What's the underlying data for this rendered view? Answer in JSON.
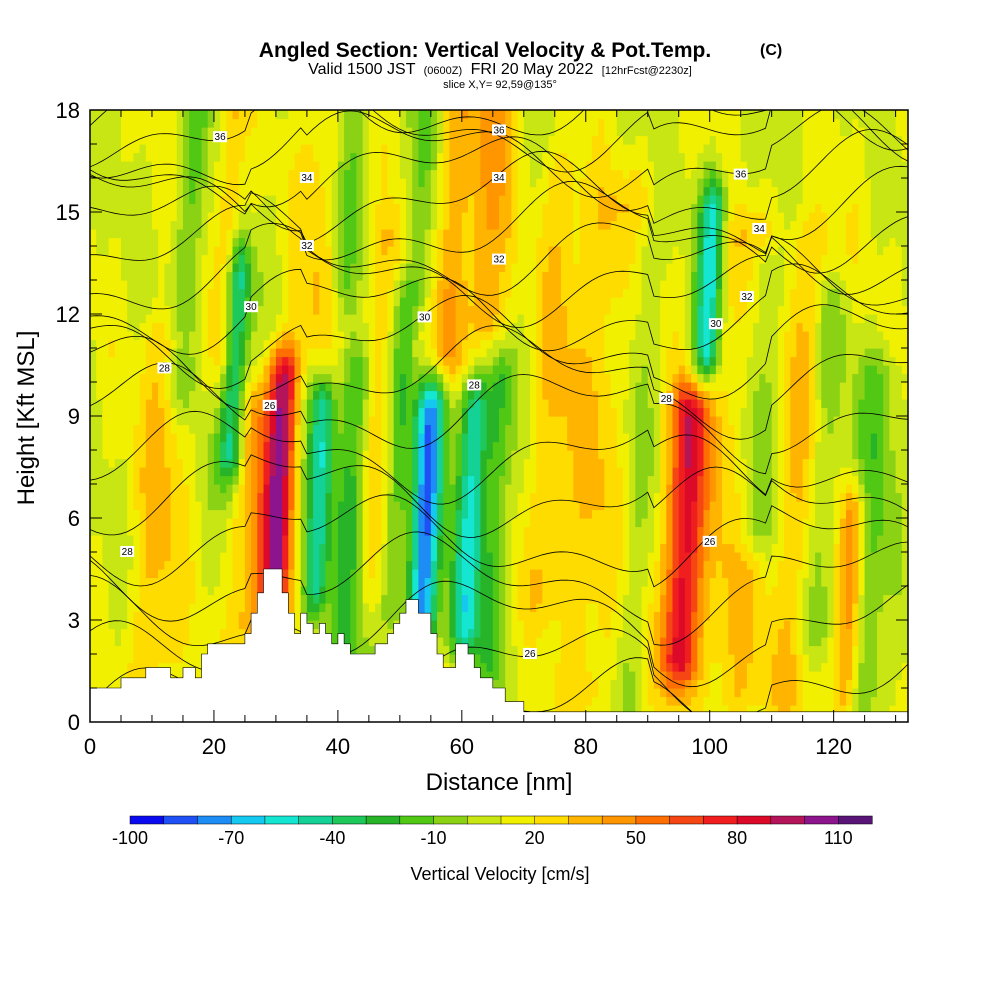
{
  "header": {
    "title": "Angled Section: Vertical Velocity & Pot.Temp.",
    "title_mark": "(C)",
    "subtitle_valid": "Valid 1500 JST",
    "subtitle_utc": "(0600Z)",
    "subtitle_date": "FRI 20 May 2022",
    "subtitle_fcst": "[12hrFcst@2230z]",
    "slice": "slice X,Y= 92,59@135°"
  },
  "chart_data": {
    "type": "heatmap",
    "xlabel": "Distance [nm]",
    "ylabel": "Height [Kft MSL]",
    "xlim": [
      0,
      132
    ],
    "ylim": [
      0,
      18
    ],
    "x_ticks": [
      0,
      20,
      40,
      60,
      80,
      100,
      120
    ],
    "y_ticks": [
      0,
      3,
      6,
      9,
      12,
      15,
      18
    ],
    "colorbar": {
      "title": "Vertical Velocity [cm/s]",
      "labels": [
        -100,
        -70,
        -40,
        -10,
        20,
        50,
        80,
        110
      ],
      "min": -100,
      "max": 120,
      "colors": [
        "#0a0af0",
        "#1e50f5",
        "#1e8cf5",
        "#14c8f0",
        "#14e6d2",
        "#14d296",
        "#1ec85a",
        "#28b428",
        "#50c814",
        "#8cd214",
        "#c8e614",
        "#f0f000",
        "#ffdc00",
        "#ffb400",
        "#ff9600",
        "#ff6e00",
        "#f54614",
        "#f01e1e",
        "#dc0a28",
        "#b4145a",
        "#8c148c",
        "#5a1478"
      ]
    },
    "updraft_bands": [
      {
        "x": 31,
        "w": 2.5,
        "amp": 85,
        "ybot": 3,
        "ytop": 10
      },
      {
        "x": 97,
        "w": 3.0,
        "amp": 80,
        "ybot": 2,
        "ytop": 9
      },
      {
        "x": 63,
        "w": 3.0,
        "amp": 35,
        "ybot": 12,
        "ytop": 18
      },
      {
        "x": 57,
        "w": 2.5,
        "amp": 30,
        "ybot": 11,
        "ytop": 18
      },
      {
        "x": 124,
        "w": 2.0,
        "amp": 40,
        "ybot": 1,
        "ytop": 6
      },
      {
        "x": 27,
        "w": 3.0,
        "amp": 30,
        "ybot": 3,
        "ytop": 9
      },
      {
        "x": 21,
        "w": 2.0,
        "amp": 25,
        "ybot": 11,
        "ytop": 18
      },
      {
        "x": 12,
        "w": 4.0,
        "amp": 22,
        "ybot": 2,
        "ytop": 11
      },
      {
        "x": 105,
        "w": 4.0,
        "amp": 22,
        "ybot": 1,
        "ytop": 14
      },
      {
        "x": 84,
        "w": 6.0,
        "amp": 20,
        "ybot": 1,
        "ytop": 15
      },
      {
        "x": 115,
        "w": 5.0,
        "amp": 20,
        "ybot": 1,
        "ytop": 14
      },
      {
        "x": 47,
        "w": 3.0,
        "amp": 20,
        "ybot": 4,
        "ytop": 14
      },
      {
        "x": 35,
        "w": 3.0,
        "amp": 18,
        "ybot": 12,
        "ytop": 18
      },
      {
        "x": 75,
        "w": 4.0,
        "amp": 18,
        "ybot": 4,
        "ytop": 16
      }
    ],
    "downdraft_bands": [
      {
        "x": 55,
        "w": 2.5,
        "amp": -85,
        "ybot": 3,
        "ytop": 9
      },
      {
        "x": 62,
        "w": 2.5,
        "amp": -60,
        "ybot": 3,
        "ytop": 9
      },
      {
        "x": 37.5,
        "w": 2.0,
        "amp": -60,
        "ybot": 4,
        "ytop": 9
      },
      {
        "x": 23,
        "w": 2.0,
        "amp": -60,
        "ybot": 8,
        "ytop": 13
      },
      {
        "x": 99,
        "w": 2.0,
        "amp": -65,
        "ybot": 11,
        "ytop": 15
      },
      {
        "x": 43,
        "w": 2.5,
        "amp": -35,
        "ybot": 2,
        "ytop": 10
      },
      {
        "x": 50,
        "w": 2.0,
        "amp": -30,
        "ybot": 4,
        "ytop": 12
      },
      {
        "x": 66,
        "w": 2.0,
        "amp": -30,
        "ybot": 2,
        "ytop": 10
      },
      {
        "x": 88,
        "w": 3.0,
        "amp": -20,
        "ybot": 1,
        "ytop": 14
      },
      {
        "x": 108,
        "w": 3.0,
        "amp": -30,
        "ybot": 6,
        "ytop": 13
      },
      {
        "x": 127,
        "w": 3.0,
        "amp": -25,
        "ybot": 1,
        "ytop": 10
      },
      {
        "x": 15,
        "w": 2.5,
        "amp": -22,
        "ybot": 10,
        "ytop": 18
      },
      {
        "x": 40,
        "w": 2.0,
        "amp": -20,
        "ybot": 13,
        "ytop": 18
      },
      {
        "x": 52,
        "w": 2.0,
        "amp": -25,
        "ybot": 13,
        "ytop": 18
      },
      {
        "x": 119,
        "w": 3.0,
        "amp": -20,
        "ybot": 3,
        "ytop": 12
      }
    ],
    "terrain": [
      [
        0,
        1
      ],
      [
        5,
        1
      ],
      [
        5,
        1.3
      ],
      [
        9,
        1.3
      ],
      [
        9,
        1.6
      ],
      [
        13,
        1.6
      ],
      [
        13,
        1.3
      ],
      [
        15,
        1.3
      ],
      [
        15,
        1.6
      ],
      [
        17,
        1.6
      ],
      [
        17,
        1.3
      ],
      [
        18,
        1.3
      ],
      [
        18,
        2
      ],
      [
        19,
        2
      ],
      [
        19,
        2.3
      ],
      [
        25,
        2.3
      ],
      [
        25,
        2.6
      ],
      [
        26,
        2.6
      ],
      [
        26,
        3.2
      ],
      [
        27,
        3.2
      ],
      [
        27,
        3.8
      ],
      [
        28,
        3.8
      ],
      [
        28,
        4.5
      ],
      [
        31,
        4.5
      ],
      [
        31,
        3.8
      ],
      [
        32,
        3.8
      ],
      [
        32,
        3.2
      ],
      [
        33,
        3.2
      ],
      [
        33,
        2.6
      ],
      [
        34,
        2.6
      ],
      [
        34,
        3.2
      ],
      [
        35,
        3.2
      ],
      [
        35,
        2.9
      ],
      [
        36,
        2.9
      ],
      [
        36,
        2.6
      ],
      [
        37,
        2.6
      ],
      [
        37,
        2.9
      ],
      [
        38,
        2.9
      ],
      [
        38,
        2.6
      ],
      [
        39,
        2.6
      ],
      [
        39,
        2.3
      ],
      [
        40,
        2.3
      ],
      [
        40,
        2.6
      ],
      [
        41,
        2.6
      ],
      [
        41,
        2.3
      ],
      [
        42,
        2.3
      ],
      [
        42,
        2
      ],
      [
        46,
        2
      ],
      [
        46,
        2.3
      ],
      [
        48,
        2.3
      ],
      [
        48,
        2.6
      ],
      [
        49,
        2.6
      ],
      [
        49,
        2.9
      ],
      [
        50,
        2.9
      ],
      [
        50,
        3.2
      ],
      [
        51,
        3.2
      ],
      [
        51,
        3.6
      ],
      [
        53,
        3.6
      ],
      [
        53,
        3.2
      ],
      [
        55,
        3.2
      ],
      [
        55,
        2.6
      ],
      [
        56,
        2.6
      ],
      [
        56,
        2
      ],
      [
        57,
        2
      ],
      [
        57,
        1.6
      ],
      [
        59,
        1.6
      ],
      [
        59,
        2.3
      ],
      [
        61,
        2.3
      ],
      [
        61,
        2
      ],
      [
        62,
        2
      ],
      [
        62,
        1.6
      ],
      [
        63,
        1.6
      ],
      [
        63,
        1.3
      ],
      [
        65,
        1.3
      ],
      [
        65,
        1
      ],
      [
        67,
        1
      ],
      [
        67,
        0.6
      ],
      [
        70,
        0.6
      ],
      [
        70,
        0.3
      ],
      [
        132,
        0.3
      ]
    ],
    "isentropes_label_values": [
      26,
      28,
      30,
      32,
      34,
      36
    ]
  }
}
